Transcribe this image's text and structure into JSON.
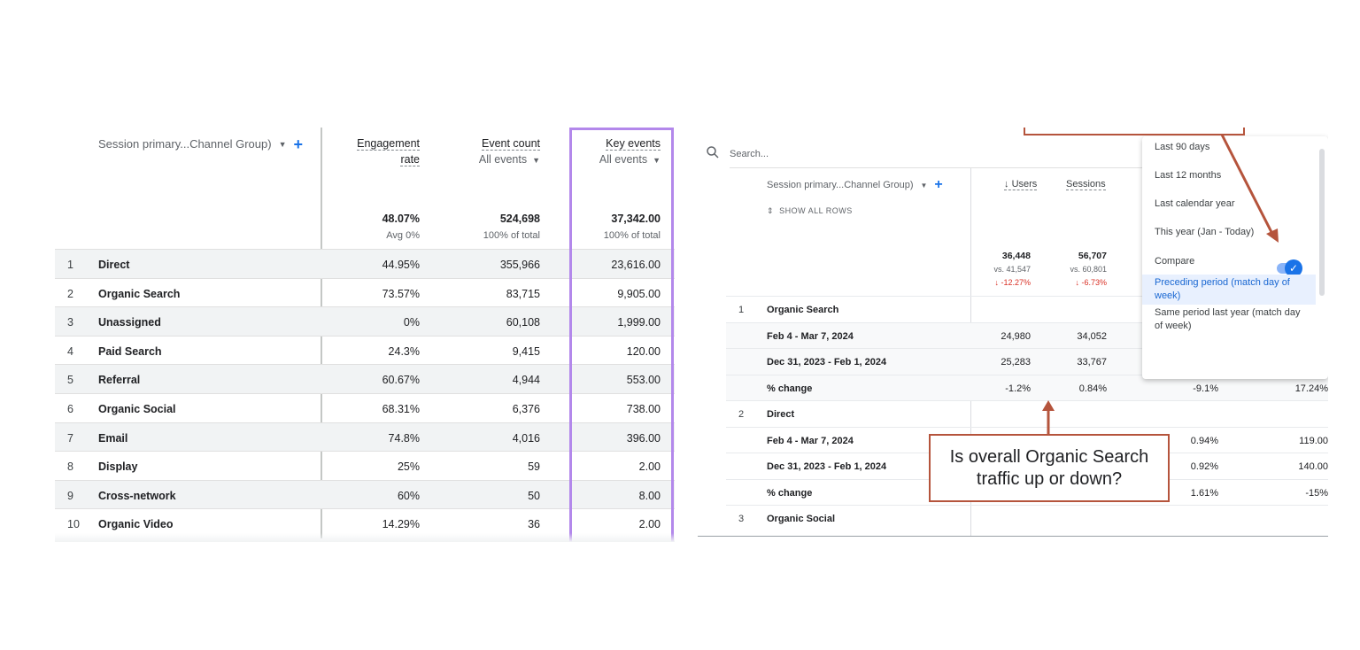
{
  "left_table": {
    "dimension_header": "Session primary...Channel Group)",
    "columns": [
      {
        "title_line1": "Engagement",
        "title_line2": "rate",
        "total": "48.07%",
        "total_sub": "Avg 0%"
      },
      {
        "title_line1": "Event count",
        "title_line2": "All events",
        "total": "524,698",
        "total_sub": "100% of total"
      },
      {
        "title_line1": "Key events",
        "title_line2": "All events",
        "total": "37,342.00",
        "total_sub": "100% of total"
      }
    ],
    "rows": [
      {
        "num": "1",
        "name": "Direct",
        "c1": "44.95%",
        "c2": "355,966",
        "c3": "23,616.00"
      },
      {
        "num": "2",
        "name": "Organic Search",
        "c1": "73.57%",
        "c2": "83,715",
        "c3": "9,905.00"
      },
      {
        "num": "3",
        "name": "Unassigned",
        "c1": "0%",
        "c2": "60,108",
        "c3": "1,999.00"
      },
      {
        "num": "4",
        "name": "Paid Search",
        "c1": "24.3%",
        "c2": "9,415",
        "c3": "120.00"
      },
      {
        "num": "5",
        "name": "Referral",
        "c1": "60.67%",
        "c2": "4,944",
        "c3": "553.00"
      },
      {
        "num": "6",
        "name": "Organic Social",
        "c1": "68.31%",
        "c2": "6,376",
        "c3": "738.00"
      },
      {
        "num": "7",
        "name": "Email",
        "c1": "74.8%",
        "c2": "4,016",
        "c3": "396.00"
      },
      {
        "num": "8",
        "name": "Display",
        "c1": "25%",
        "c2": "59",
        "c3": "2.00"
      },
      {
        "num": "9",
        "name": "Cross-network",
        "c1": "60%",
        "c2": "50",
        "c3": "8.00"
      },
      {
        "num": "10",
        "name": "Organic Video",
        "c1": "14.29%",
        "c2": "36",
        "c3": "2.00"
      }
    ]
  },
  "right_table": {
    "search_placeholder": "Search...",
    "dimension_header": "Session primary...Channel Group)",
    "show_all_rows": "SHOW ALL ROWS",
    "col_users": "Users",
    "col_sessions": "Sessions",
    "totals": {
      "users": "36,448",
      "users_vs": "vs. 41,547",
      "users_change": "↓ -12.27%",
      "sessions": "56,707",
      "sessions_vs": "vs. 60,801",
      "sessions_change": "↓ -6.73%"
    },
    "rows": [
      {
        "idx": "1",
        "label": "Organic Search",
        "v1": "",
        "v2": "",
        "v3": "",
        "v4": "",
        "type": "group"
      },
      {
        "idx": "",
        "label": "Feb 4 - Mar 7, 2024",
        "v1": "24,980",
        "v2": "34,052",
        "v3": "",
        "v4": "",
        "type": "sub"
      },
      {
        "idx": "",
        "label": "Dec 31, 2023 - Feb 1, 2024",
        "v1": "25,283",
        "v2": "33,767",
        "v3": "",
        "v4": "",
        "type": "sub"
      },
      {
        "idx": "",
        "label": "% change",
        "v1": "-1.2%",
        "v2": "0.84%",
        "v3": "-9.1%",
        "v4": "17.24%",
        "type": "sub"
      },
      {
        "idx": "2",
        "label": "Direct",
        "v1": "",
        "v2": "",
        "v3": "",
        "v4": "",
        "type": "group"
      },
      {
        "idx": "",
        "label": "Feb 4 - Mar 7, 2024",
        "v1": "",
        "v2": "",
        "v3": "0.94%",
        "v4": "119.00",
        "type": "plain"
      },
      {
        "idx": "",
        "label": "Dec 31, 2023 - Feb 1, 2024",
        "v1": "",
        "v2": "",
        "v3": "0.92%",
        "v4": "140.00",
        "type": "plain"
      },
      {
        "idx": "",
        "label": "% change",
        "v1": "",
        "v2": "",
        "v3": "1.61%",
        "v4": "-15%",
        "type": "plain"
      },
      {
        "idx": "3",
        "label": "Organic Social",
        "v1": "",
        "v2": "",
        "v3": "",
        "v4": "",
        "type": "group"
      }
    ],
    "dropdown": {
      "items": [
        "Last 90 days",
        "Last 12 months",
        "Last calendar year",
        "This year (Jan - Today)"
      ],
      "compare_label": "Compare",
      "option_selected": "Preceding period (match day of week)",
      "option_other": "Same period last year (match day of week)"
    },
    "callout_text": "Is overall Organic Search traffic up or down?"
  },
  "colors": {
    "accent": "#1a73e8",
    "highlight_box": "#b388eb",
    "callout": "#b5543c",
    "yellow": "#f5ef8b"
  }
}
